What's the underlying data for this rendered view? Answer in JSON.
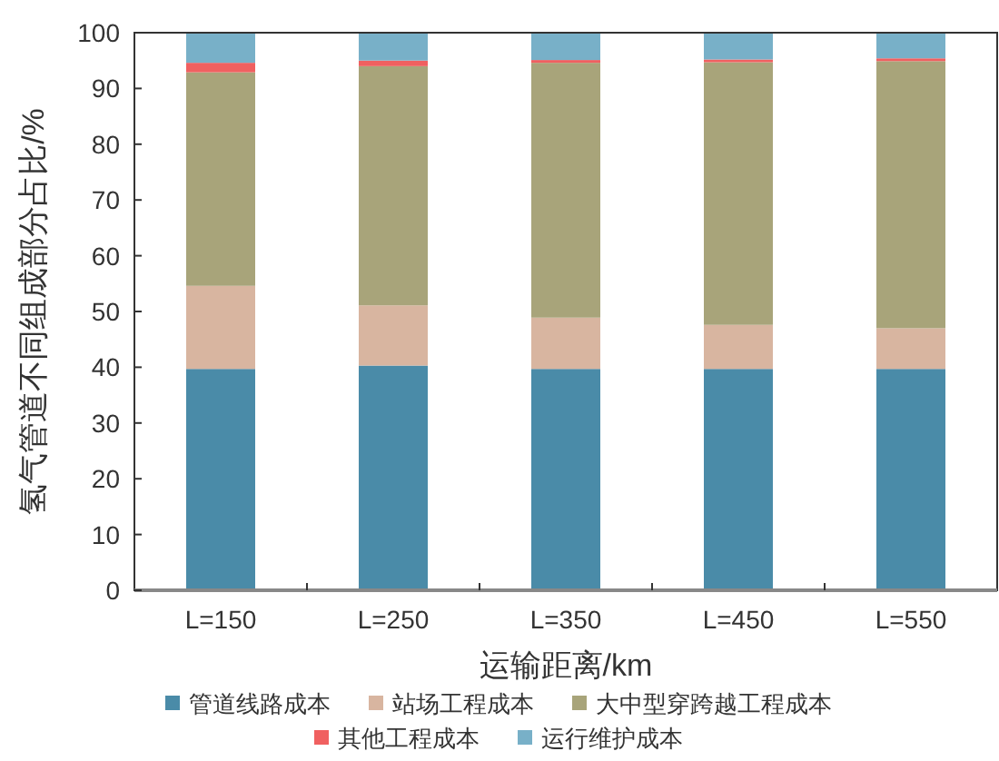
{
  "chart_data": {
    "type": "bar",
    "stacked": true,
    "xlabel": "运输距离/km",
    "ylabel": "氢气管道不同组成部分占比/%",
    "categories": [
      "L=150",
      "L=250",
      "L=350",
      "L=450",
      "L=550"
    ],
    "series": [
      {
        "name": "管道线路成本",
        "color": "#4a8ba8",
        "values": [
          39.7,
          40.3,
          39.7,
          39.7,
          39.7
        ]
      },
      {
        "name": "站场工程成本",
        "color": "#d8b5a0",
        "values": [
          14.9,
          10.8,
          9.2,
          7.9,
          7.3
        ]
      },
      {
        "name": "大中型穿跨越工程成本",
        "color": "#a8a47a",
        "values": [
          38.3,
          42.9,
          45.7,
          47.1,
          47.9
        ]
      },
      {
        "name": "其他工程成本",
        "color": "#f06060",
        "values": [
          1.7,
          1.0,
          0.5,
          0.5,
          0.5
        ]
      },
      {
        "name": "运行维护成本",
        "color": "#78b0c8",
        "values": [
          5.4,
          5.0,
          4.9,
          4.8,
          4.6
        ]
      }
    ],
    "ylim": [
      0,
      100
    ],
    "yticks": [
      0,
      10,
      20,
      30,
      40,
      50,
      60,
      70,
      80,
      90,
      100
    ],
    "grid": false,
    "legend": "bottom"
  }
}
